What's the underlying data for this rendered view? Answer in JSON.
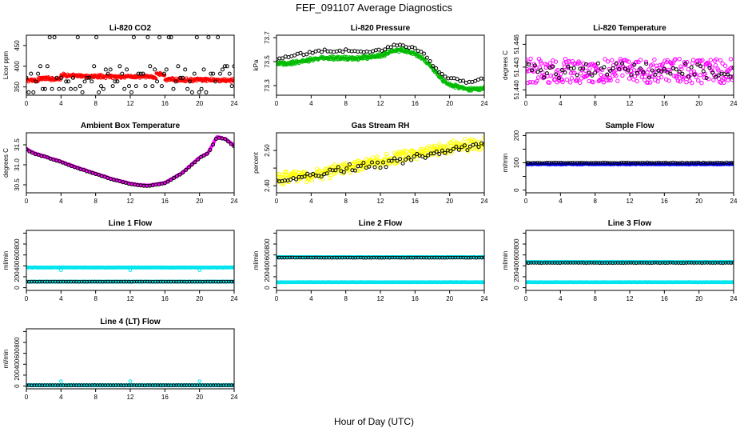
{
  "figure": {
    "title": "FEF_091107  Average Diagnostics",
    "xlabel": "Hour of Day (UTC)"
  },
  "chart_data": [
    {
      "type": "scatter",
      "title": "Li-820 CO2",
      "ylabel": "Licor ppm",
      "xlim": [
        0,
        24
      ],
      "ylim": [
        330,
        475
      ],
      "xticks": [
        0,
        4,
        8,
        12,
        16,
        20,
        24
      ],
      "yticks": [
        350,
        400,
        450
      ],
      "series": [
        {
          "color": "#ff0000",
          "size": 1.6,
          "pattern": "baseline",
          "n": 420,
          "base": 373,
          "noise": 5,
          "segments": [
            [
              0,
              1.4,
              366,
              366
            ],
            [
              1.4,
              4.0,
              370,
              370
            ],
            [
              4.0,
              5.5,
              380,
              376
            ],
            [
              5.5,
              15.0,
              376,
              374
            ],
            [
              15.0,
              16.0,
              383,
              378
            ],
            [
              16.0,
              24.0,
              368,
              366
            ]
          ]
        },
        {
          "color": "#000000",
          "size": 2,
          "pattern": "scatterlevels",
          "n": 90,
          "levels": [
            337,
            345,
            352,
            363,
            372,
            382,
            392,
            400,
            470
          ]
        }
      ]
    },
    {
      "type": "scatter",
      "title": "Li-820 Pressure",
      "ylabel": "kPa",
      "xlim": [
        0,
        24
      ],
      "ylim": [
        73.22,
        73.72
      ],
      "xticks": [
        0,
        4,
        8,
        12,
        16,
        20,
        24
      ],
      "yticks": [
        73.3,
        73.5,
        73.7
      ],
      "series": [
        {
          "color": "#00bb00",
          "size": 1.6,
          "pattern": "curve",
          "n": 420,
          "noise": 0.02,
          "curve": [
            [
              0,
              73.48
            ],
            [
              2,
              73.49
            ],
            [
              5,
              73.53
            ],
            [
              8,
              73.53
            ],
            [
              10,
              73.53
            ],
            [
              12,
              73.55
            ],
            [
              14,
              73.6
            ],
            [
              16,
              73.57
            ],
            [
              17,
              73.52
            ],
            [
              18,
              73.45
            ],
            [
              19,
              73.36
            ],
            [
              20,
              73.31
            ],
            [
              22,
              73.27
            ],
            [
              24,
              73.28
            ]
          ]
        },
        {
          "color": "#000000",
          "size": 2,
          "pattern": "curve",
          "n": 70,
          "noise": 0.015,
          "curve": [
            [
              0,
              73.52
            ],
            [
              2,
              73.55
            ],
            [
              5,
              73.59
            ],
            [
              8,
              73.59
            ],
            [
              10,
              73.58
            ],
            [
              12,
              73.6
            ],
            [
              14,
              73.64
            ],
            [
              16,
              73.61
            ],
            [
              17,
              73.56
            ],
            [
              18,
              73.48
            ],
            [
              19,
              73.4
            ],
            [
              20,
              73.36
            ],
            [
              22,
              73.33
            ],
            [
              24,
              73.36
            ]
          ]
        }
      ]
    },
    {
      "type": "scatter",
      "title": "Li-820 Temperature",
      "ylabel": "degrees C",
      "xlim": [
        0,
        24
      ],
      "ylim": [
        51.4393,
        51.4472
      ],
      "xticks": [
        0,
        4,
        8,
        12,
        16,
        20,
        24
      ],
      "yticks": [
        51.44,
        51.443,
        51.446
      ],
      "yticklabels": [
        "51.440",
        "51.443",
        "51.446"
      ],
      "series": [
        {
          "color": "#ff00ff",
          "size": 2.2,
          "pattern": "noise",
          "n": 300,
          "base": 51.4425,
          "noise": 0.0016
        },
        {
          "color": "#000000",
          "size": 2,
          "pattern": "noise",
          "n": 70,
          "base": 51.4425,
          "noise": 0.001
        }
      ]
    },
    {
      "type": "scatter",
      "title": "Ambient Box Temperature",
      "ylabel": "degrees C",
      "xlim": [
        0,
        24
      ],
      "ylim": [
        30.3,
        31.8
      ],
      "xticks": [
        0,
        4,
        8,
        12,
        16,
        20,
        24
      ],
      "yticks": [
        30.5,
        31.0,
        31.5
      ],
      "yticklabels": [
        "30.5",
        "31.0",
        "31.5"
      ],
      "series": [
        {
          "color": "#ff00ff",
          "size": 1.6,
          "pattern": "curve",
          "n": 420,
          "noise": 0.012,
          "curve": [
            [
              0,
              31.4
            ],
            [
              1,
              31.28
            ],
            [
              2,
              31.22
            ],
            [
              4,
              31.08
            ],
            [
              6,
              30.92
            ],
            [
              8,
              30.78
            ],
            [
              10,
              30.64
            ],
            [
              12,
              30.53
            ],
            [
              13,
              30.5
            ],
            [
              14,
              30.48
            ],
            [
              16,
              30.55
            ],
            [
              18,
              30.8
            ],
            [
              20,
              31.18
            ],
            [
              21,
              31.3
            ],
            [
              22,
              31.7
            ],
            [
              23,
              31.65
            ],
            [
              24,
              31.48
            ]
          ]
        },
        {
          "color": "#000000",
          "size": 2,
          "pattern": "curve",
          "n": 70,
          "noise": 0.008,
          "curve": [
            [
              0,
              31.38
            ],
            [
              1,
              31.27
            ],
            [
              2,
              31.21
            ],
            [
              4,
              31.07
            ],
            [
              6,
              30.91
            ],
            [
              8,
              30.77
            ],
            [
              10,
              30.63
            ],
            [
              12,
              30.52
            ],
            [
              13,
              30.49
            ],
            [
              14,
              30.47
            ],
            [
              16,
              30.54
            ],
            [
              18,
              30.79
            ],
            [
              20,
              31.17
            ],
            [
              21,
              31.29
            ],
            [
              22,
              31.68
            ],
            [
              23,
              31.64
            ],
            [
              24,
              31.46
            ]
          ]
        }
      ]
    },
    {
      "type": "scatter",
      "title": "Gas Stream RH",
      "ylabel": "percent",
      "xlim": [
        0,
        24
      ],
      "ylim": [
        2.38,
        2.55
      ],
      "xticks": [
        0,
        4,
        8,
        12,
        16,
        20,
        24
      ],
      "yticks": [
        2.4,
        2.45,
        2.5
      ],
      "yticklabels": [
        "2.40",
        "",
        "2.50"
      ],
      "series": [
        {
          "color": "#ffff00",
          "size": 2.2,
          "pattern": "curve",
          "n": 320,
          "noise": 0.02,
          "curve": [
            [
              0,
              2.42
            ],
            [
              4,
              2.43
            ],
            [
              8,
              2.45
            ],
            [
              12,
              2.47
            ],
            [
              16,
              2.49
            ],
            [
              20,
              2.51
            ],
            [
              24,
              2.52
            ]
          ]
        },
        {
          "color": "#000000",
          "size": 2,
          "pattern": "curve",
          "n": 75,
          "noise": 0.013,
          "curve": [
            [
              0,
              2.41
            ],
            [
              4,
              2.43
            ],
            [
              8,
              2.45
            ],
            [
              12,
              2.46
            ],
            [
              16,
              2.48
            ],
            [
              20,
              2.5
            ],
            [
              24,
              2.52
            ]
          ]
        }
      ]
    },
    {
      "type": "scatter",
      "title": "Sample Flow",
      "ylabel": "ml/min",
      "xlim": [
        0,
        24
      ],
      "ylim": [
        -10,
        210
      ],
      "xticks": [
        0,
        4,
        8,
        12,
        16,
        20,
        24
      ],
      "yticks": [
        0,
        50,
        100,
        150,
        200
      ],
      "yticklabels": [
        "0",
        "",
        "100",
        "",
        "200"
      ],
      "series": [
        {
          "color": "#0000ff",
          "size": 1.6,
          "pattern": "baseline",
          "n": 480,
          "base": 95,
          "noise": 2
        },
        {
          "color": "#000000",
          "size": 1.8,
          "pattern": "baseline",
          "n": 90,
          "base": 100,
          "noise": 1.5
        }
      ]
    },
    {
      "type": "scatter",
      "title": "Line 1 Flow",
      "ylabel": "ml/min",
      "xlim": [
        0,
        24
      ],
      "ylim": [
        -50,
        1050
      ],
      "xticks": [
        0,
        4,
        8,
        12,
        16,
        20,
        24
      ],
      "yticks": [
        0,
        200,
        400,
        600,
        800,
        1000
      ],
      "yticklabels": [
        "0",
        "200",
        "400",
        "600",
        "800",
        ""
      ],
      "series": [
        {
          "color": "#00e5ee",
          "size": 1.8,
          "pattern": "baseline",
          "n": 420,
          "base": 370,
          "noise": 4,
          "spikes": [
            [
              4,
              320
            ],
            [
              12,
              320
            ],
            [
              20,
              320
            ]
          ]
        },
        {
          "color": "#00e5ee",
          "size": 1.8,
          "pattern": "baseline",
          "n": 300,
          "base": 110,
          "noise": 3
        },
        {
          "color": "#000000",
          "size": 1.8,
          "pattern": "baseline",
          "n": 80,
          "base": 110,
          "noise": 2
        }
      ]
    },
    {
      "type": "scatter",
      "title": "Line 2 Flow",
      "ylabel": "ml/min",
      "xlim": [
        0,
        24
      ],
      "ylim": [
        -50,
        1050
      ],
      "xticks": [
        0,
        4,
        8,
        12,
        16,
        20,
        24
      ],
      "yticks": [
        0,
        200,
        400,
        600,
        800,
        1000
      ],
      "yticklabels": [
        "0",
        "200",
        "400",
        "600",
        "800",
        ""
      ],
      "series": [
        {
          "color": "#00e5ee",
          "size": 1.8,
          "pattern": "baseline",
          "n": 420,
          "base": 560,
          "noise": 4
        },
        {
          "color": "#00e5ee",
          "size": 1.8,
          "pattern": "baseline",
          "n": 300,
          "base": 100,
          "noise": 3
        },
        {
          "color": "#000000",
          "size": 1.8,
          "pattern": "baseline",
          "n": 80,
          "base": 550,
          "noise": 3
        }
      ]
    },
    {
      "type": "scatter",
      "title": "Line 3 Flow",
      "ylabel": "ml/min",
      "xlim": [
        0,
        24
      ],
      "ylim": [
        -50,
        1050
      ],
      "xticks": [
        0,
        4,
        8,
        12,
        16,
        20,
        24
      ],
      "yticks": [
        0,
        200,
        400,
        600,
        800,
        1000
      ],
      "yticklabels": [
        "0",
        "200",
        "400",
        "600",
        "800",
        ""
      ],
      "series": [
        {
          "color": "#00e5ee",
          "size": 1.8,
          "pattern": "baseline",
          "n": 420,
          "base": 470,
          "noise": 4
        },
        {
          "color": "#00e5ee",
          "size": 1.8,
          "pattern": "baseline",
          "n": 300,
          "base": 100,
          "noise": 3
        },
        {
          "color": "#000000",
          "size": 1.8,
          "pattern": "baseline",
          "n": 80,
          "base": 455,
          "noise": 3
        }
      ]
    },
    {
      "type": "scatter",
      "title": "Line 4 (LT) Flow",
      "ylabel": "ml/min",
      "xlim": [
        0,
        24
      ],
      "ylim": [
        -50,
        1050
      ],
      "xticks": [
        0,
        4,
        8,
        12,
        16,
        20,
        24
      ],
      "yticks": [
        0,
        200,
        400,
        600,
        800,
        1000
      ],
      "yticklabels": [
        "0",
        "200",
        "400",
        "600",
        "800",
        ""
      ],
      "series": [
        {
          "color": "#00e5ee",
          "size": 1.8,
          "pattern": "baseline",
          "n": 420,
          "base": 15,
          "noise": 3,
          "spikes": [
            [
              4,
              90
            ],
            [
              12,
              90
            ],
            [
              20,
              90
            ]
          ]
        },
        {
          "color": "#000000",
          "size": 1.8,
          "pattern": "baseline",
          "n": 80,
          "base": 15,
          "noise": 2
        }
      ]
    }
  ]
}
